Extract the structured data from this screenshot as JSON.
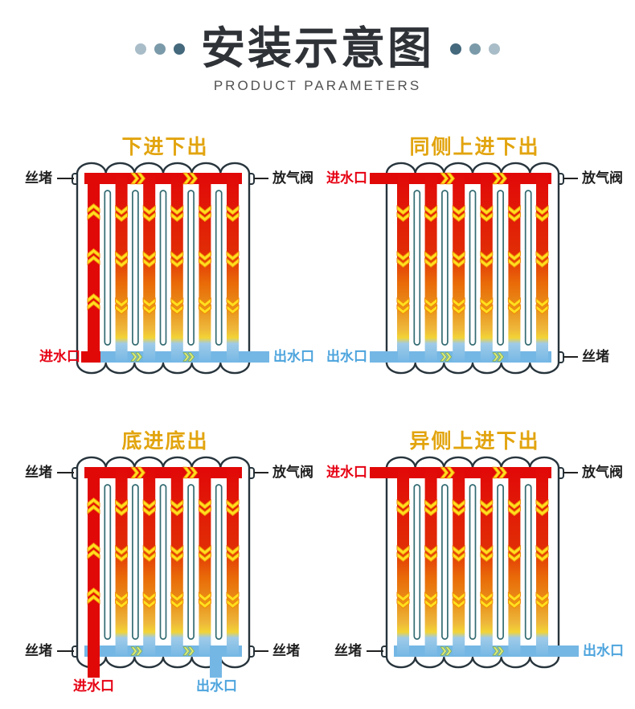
{
  "header": {
    "title": "安装示意图",
    "subtitle": "PRODUCT PARAMETERS",
    "dots_left": [
      "#a9bdc8",
      "#7b9aa9",
      "#44687c"
    ],
    "dots_right": [
      "#44687c",
      "#7b9aa9",
      "#a9bdc8"
    ]
  },
  "colors": {
    "hot": "#e10808",
    "cold": "#74b7e5",
    "arrow_fill": "#ffdf1f",
    "arrow_edge": "#ef8b05",
    "cold_arrow_fill": "#d9e97c",
    "cold_arrow_edge": "#85ad45",
    "outline": "#27343c",
    "tube_edge": "#336b72",
    "title_gold": "#e2a40e",
    "label_dark": "#1f1f1f",
    "label_red": "#e60012",
    "label_blue": "#4da4dd"
  },
  "diagrams": [
    {
      "title": "下进下出",
      "inlet": "bottom-left",
      "outlet": "bottom-right",
      "riser": true,
      "labels": {
        "top_left": "丝堵",
        "top_right": "放气阀",
        "bottom_left": "进水口",
        "bottom_right": "出水口"
      }
    },
    {
      "title": "同侧上进下出",
      "inlet": "top-left",
      "outlet": "bottom-left",
      "riser": false,
      "labels": {
        "top_left": "进水口",
        "top_right": "放气阀",
        "bottom_left": "出水口",
        "bottom_right": "丝堵"
      }
    },
    {
      "title": "底进底出",
      "inlet": "bottom-under-left",
      "outlet": "bottom-under-right",
      "riser": true,
      "labels": {
        "top_left": "丝堵",
        "top_right": "放气阀",
        "bottom_left": "丝堵",
        "bottom_right": "丝堵",
        "below_left": "进水口",
        "below_right": "出水口"
      }
    },
    {
      "title": "异侧上进下出",
      "inlet": "top-left",
      "outlet": "bottom-right",
      "riser": false,
      "labels": {
        "top_left": "进水口",
        "top_right": "放气阀",
        "bottom_left": "丝堵",
        "bottom_right": "出水口"
      }
    }
  ]
}
